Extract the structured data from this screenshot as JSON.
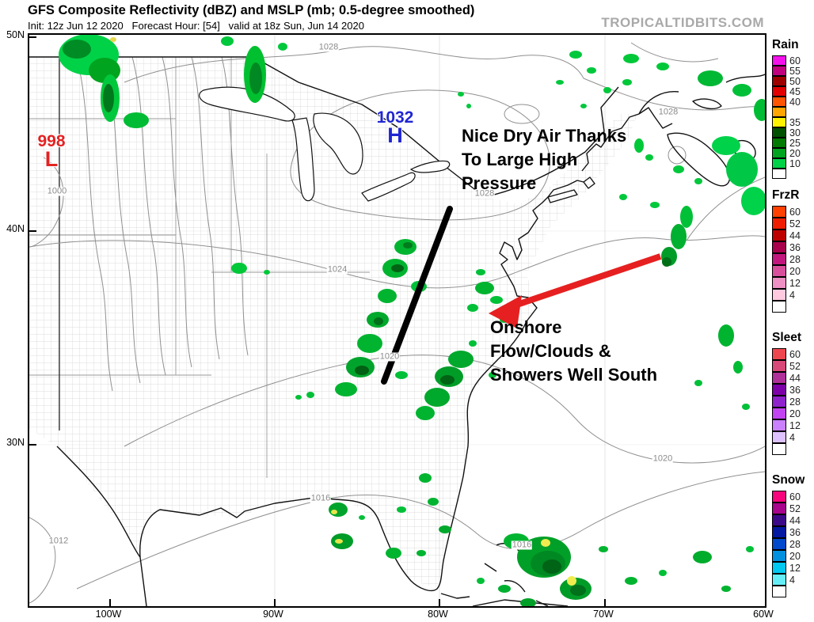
{
  "header": {
    "title": "GFS Composite Reflectivity (dBZ) and MSLP (mb; 0.5-degree smoothed)",
    "init_line": "Init: 12z Jun 12 2020   Forecast Hour: [54]   valid at 18z Sun, Jun 14 2020",
    "logo": "TROPICALTIDBITS.COM"
  },
  "legends": [
    {
      "title": "Rain",
      "segments": [
        {
          "color": "#f411ec",
          "label": "60"
        },
        {
          "color": "#c0007e",
          "label": "55"
        },
        {
          "color": "#9e0000",
          "label": "50"
        },
        {
          "color": "#e30000",
          "label": "45"
        },
        {
          "color": "#ff5400",
          "label": "40"
        },
        {
          "color": "#ffa600",
          "label": ""
        },
        {
          "color": "#fff200",
          "label": "35"
        },
        {
          "color": "#005200",
          "label": "30"
        },
        {
          "color": "#007a00",
          "label": "25"
        },
        {
          "color": "#00a41e",
          "label": "20"
        },
        {
          "color": "#00d248",
          "label": "10"
        },
        {
          "color": "#ffffff",
          "label": ""
        }
      ]
    },
    {
      "title": "FrzR",
      "segments": [
        {
          "color": "#ff4000",
          "label": "60"
        },
        {
          "color": "#ef1e00",
          "label": "52"
        },
        {
          "color": "#bd0000",
          "label": "44"
        },
        {
          "color": "#a8004c",
          "label": "36"
        },
        {
          "color": "#c2187e",
          "label": "28"
        },
        {
          "color": "#d8509c",
          "label": "20"
        },
        {
          "color": "#ee90c4",
          "label": "12"
        },
        {
          "color": "#ffc9e0",
          "label": "4"
        },
        {
          "color": "#ffffff",
          "label": ""
        }
      ]
    },
    {
      "title": "Sleet",
      "segments": [
        {
          "color": "#ef4750",
          "label": "60"
        },
        {
          "color": "#d84878",
          "label": "52"
        },
        {
          "color": "#b0309a",
          "label": "44"
        },
        {
          "color": "#7d00a8",
          "label": "36"
        },
        {
          "color": "#8f22cc",
          "label": "28"
        },
        {
          "color": "#c243f2",
          "label": "20"
        },
        {
          "color": "#c981ff",
          "label": "12"
        },
        {
          "color": "#ddc2ff",
          "label": "4"
        },
        {
          "color": "#ffffff",
          "label": ""
        }
      ]
    },
    {
      "title": "Snow",
      "segments": [
        {
          "color": "#f8047c",
          "label": "60"
        },
        {
          "color": "#a8048c",
          "label": "52"
        },
        {
          "color": "#3c0a88",
          "label": "44"
        },
        {
          "color": "#0418a2",
          "label": "36"
        },
        {
          "color": "#0048cc",
          "label": "28"
        },
        {
          "color": "#0090e0",
          "label": "20"
        },
        {
          "color": "#00c8f0",
          "label": "12"
        },
        {
          "color": "#66eef8",
          "label": "4"
        },
        {
          "color": "#ffffff",
          "label": ""
        }
      ]
    }
  ],
  "map": {
    "pressure_centers": [
      {
        "value": "1032",
        "symbol": "H",
        "color": "#2026d2"
      },
      {
        "value": "998",
        "symbol": "L",
        "color": "#e32222"
      }
    ],
    "annotations": [
      {
        "lines": [
          "Nice Dry Air Thanks",
          "To Large High",
          "Pressure"
        ]
      },
      {
        "lines": [
          "Onshore",
          "Flow/Clouds &",
          "Showers Well South"
        ]
      }
    ],
    "isobar_labels": [
      {
        "text": "1028"
      },
      {
        "text": "1028"
      },
      {
        "text": "1028"
      },
      {
        "text": "1024"
      },
      {
        "text": "1020"
      },
      {
        "text": "1020"
      },
      {
        "text": "1016"
      },
      {
        "text": "1016"
      },
      {
        "text": "1012"
      },
      {
        "text": "1000"
      }
    ],
    "axes": {
      "lat": [
        "50N",
        "40N",
        "30N"
      ],
      "lon": [
        "100W",
        "90W",
        "80W",
        "70W",
        "60W"
      ]
    },
    "arrow_color": "#e62020"
  }
}
